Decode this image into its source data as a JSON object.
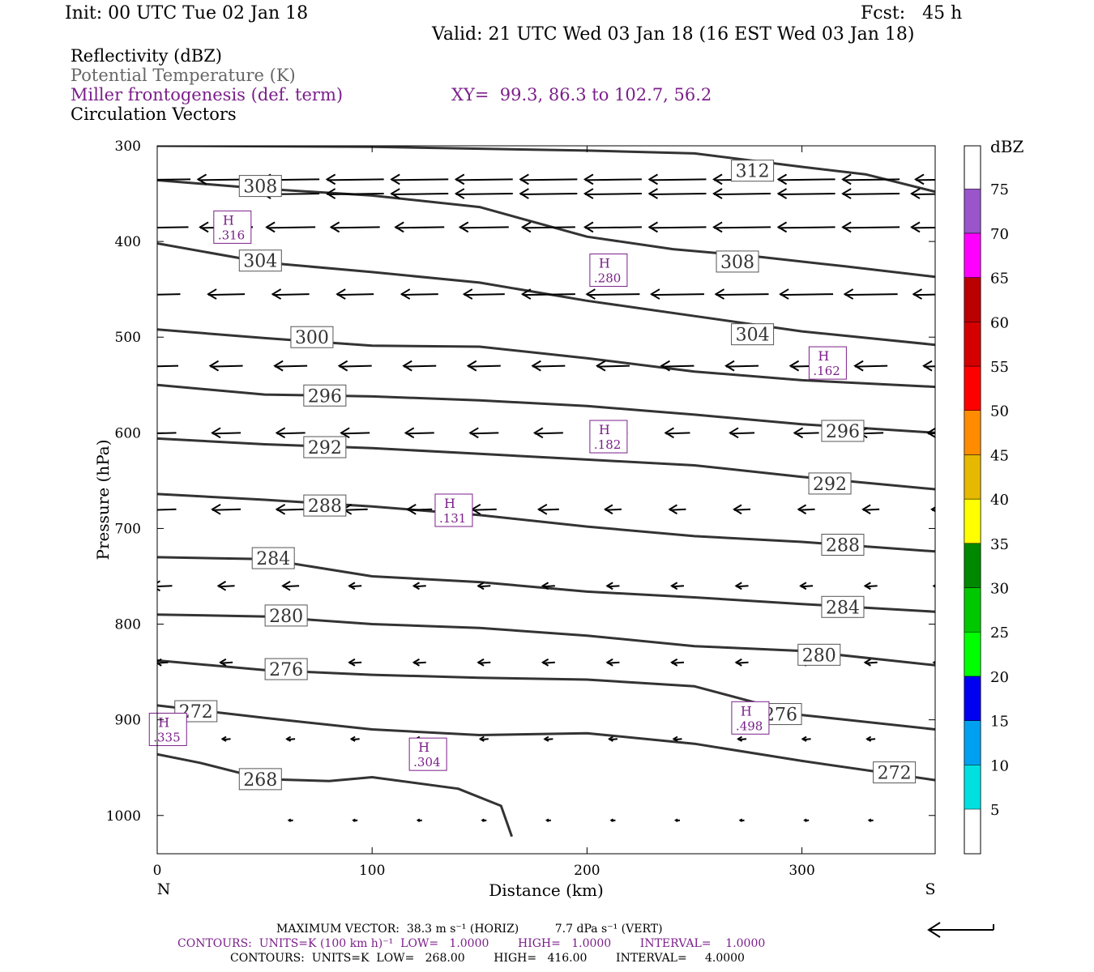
{
  "header": {
    "init": "Init: 00 UTC Tue 02 Jan 18",
    "fcst": "Fcst:   45 h",
    "valid": "Valid: 21 UTC Wed 03 Jan 18 (16 EST Wed 03 Jan 18)"
  },
  "fields": {
    "reflectivity": "Reflectivity (dBZ)",
    "theta": "Potential Temperature (K)",
    "miller": "Miller frontogenesis (def. term)",
    "xy": "XY=  99.3, 86.3 to 102.7, 56.2",
    "vectors": "Circulation Vectors"
  },
  "footer": {
    "maxvec": "MAXIMUM VECTOR:  38.3 m s⁻¹ (HORIZ)          7.7 dPa s⁻¹ (VERT)",
    "contours1": "CONTOURS:  UNITS=K (100 km h)⁻¹  LOW=   1.0000        HIGH=   1.0000        INTERVAL=    1.0000",
    "contours2": "CONTOURS:  UNITS=K  LOW=   268.00        HIGH=   416.00        INTERVAL=     4.0000"
  },
  "colors": {
    "theta": "#333333",
    "miller": "#7b1f8a",
    "vector": "#000000"
  },
  "chart_data": {
    "type": "cross-section",
    "xlabel": "Distance (km)",
    "ylabel": "Pressure (hPa)",
    "xlim": [
      0,
      362
    ],
    "ylim": [
      300,
      1040
    ],
    "y_log": false,
    "x_ticks": [
      0,
      100,
      200,
      300
    ],
    "y_ticks": [
      300,
      400,
      500,
      600,
      700,
      800,
      900,
      1000
    ],
    "end_labels": {
      "left": "N",
      "right": "S"
    },
    "theta_contours": [
      {
        "label": "312",
        "points": [
          [
            0,
            300
          ],
          [
            100,
            301
          ],
          [
            200,
            305
          ],
          [
            250,
            308
          ],
          [
            300,
            322
          ],
          [
            330,
            330
          ],
          [
            362,
            348
          ]
        ],
        "label_positions": [
          [
            277,
            326
          ]
        ]
      },
      {
        "label": "308",
        "points": [
          [
            0,
            336
          ],
          [
            50,
            345
          ],
          [
            100,
            352
          ],
          [
            150,
            364
          ],
          [
            200,
            395
          ],
          [
            240,
            408
          ],
          [
            280,
            416
          ],
          [
            320,
            426
          ],
          [
            362,
            437
          ]
        ],
        "label_positions": [
          [
            48,
            342
          ],
          [
            270,
            421
          ]
        ]
      },
      {
        "label": "304",
        "points": [
          [
            0,
            402
          ],
          [
            50,
            422
          ],
          [
            100,
            432
          ],
          [
            150,
            443
          ],
          [
            200,
            462
          ],
          [
            250,
            478
          ],
          [
            300,
            494
          ],
          [
            362,
            508
          ]
        ],
        "label_positions": [
          [
            48,
            420
          ],
          [
            277,
            497
          ]
        ]
      },
      {
        "label": "300",
        "points": [
          [
            0,
            492
          ],
          [
            50,
            501
          ],
          [
            100,
            509
          ],
          [
            150,
            510
          ],
          [
            200,
            522
          ],
          [
            250,
            536
          ],
          [
            300,
            545
          ],
          [
            362,
            552
          ]
        ],
        "label_positions": [
          [
            72,
            500
          ]
        ]
      },
      {
        "label": "296",
        "points": [
          [
            0,
            550
          ],
          [
            50,
            560
          ],
          [
            100,
            562
          ],
          [
            150,
            566
          ],
          [
            200,
            572
          ],
          [
            250,
            581
          ],
          [
            300,
            591
          ],
          [
            362,
            600
          ]
        ],
        "label_positions": [
          [
            78,
            561
          ],
          [
            319,
            598
          ]
        ]
      },
      {
        "label": "292",
        "points": [
          [
            0,
            606
          ],
          [
            50,
            612
          ],
          [
            100,
            616
          ],
          [
            150,
            622
          ],
          [
            200,
            628
          ],
          [
            250,
            634
          ],
          [
            300,
            646
          ],
          [
            362,
            659
          ]
        ],
        "label_positions": [
          [
            78,
            615
          ],
          [
            313,
            653
          ]
        ]
      },
      {
        "label": "288",
        "points": [
          [
            0,
            664
          ],
          [
            50,
            670
          ],
          [
            100,
            677
          ],
          [
            150,
            686
          ],
          [
            200,
            698
          ],
          [
            250,
            708
          ],
          [
            300,
            714
          ],
          [
            362,
            724
          ]
        ],
        "label_positions": [
          [
            78,
            676
          ],
          [
            319,
            717
          ]
        ]
      },
      {
        "label": "284",
        "points": [
          [
            0,
            730
          ],
          [
            50,
            732
          ],
          [
            100,
            750
          ],
          [
            150,
            756
          ],
          [
            200,
            766
          ],
          [
            250,
            772
          ],
          [
            300,
            779
          ],
          [
            362,
            787
          ]
        ],
        "label_positions": [
          [
            54,
            731
          ],
          [
            319,
            782
          ]
        ]
      },
      {
        "label": "280",
        "points": [
          [
            0,
            790
          ],
          [
            50,
            792
          ],
          [
            100,
            800
          ],
          [
            150,
            804
          ],
          [
            200,
            812
          ],
          [
            250,
            823
          ],
          [
            300,
            828
          ],
          [
            362,
            843
          ]
        ],
        "label_positions": [
          [
            60,
            791
          ],
          [
            308,
            832
          ]
        ]
      },
      {
        "label": "276",
        "points": [
          [
            0,
            838
          ],
          [
            50,
            848
          ],
          [
            100,
            853
          ],
          [
            150,
            856
          ],
          [
            200,
            858
          ],
          [
            250,
            865
          ],
          [
            300,
            895
          ],
          [
            362,
            910
          ]
        ],
        "label_positions": [
          [
            60,
            847
          ],
          [
            290,
            894
          ]
        ]
      },
      {
        "label": "272",
        "points": [
          [
            0,
            885
          ],
          [
            50,
            898
          ],
          [
            100,
            910
          ],
          [
            150,
            916
          ],
          [
            200,
            914
          ],
          [
            250,
            925
          ],
          [
            300,
            943
          ],
          [
            362,
            963
          ]
        ],
        "label_positions": [
          [
            18,
            891
          ],
          [
            343,
            955
          ]
        ]
      },
      {
        "label": "268",
        "points": [
          [
            0,
            936
          ],
          [
            20,
            945
          ],
          [
            50,
            962
          ],
          [
            80,
            964
          ],
          [
            100,
            960
          ],
          [
            140,
            972
          ],
          [
            160,
            990
          ],
          [
            165,
            1022
          ]
        ],
        "label_positions": [
          [
            48,
            962
          ]
        ]
      }
    ],
    "miller_maxima": [
      {
        "label": "H",
        "value": ".316",
        "x": 35,
        "p": 385
      },
      {
        "label": "H",
        "value": ".280",
        "x": 210,
        "p": 430
      },
      {
        "label": "H",
        "value": ".162",
        "x": 312,
        "p": 527
      },
      {
        "label": "H",
        "value": ".182",
        "x": 210,
        "p": 604
      },
      {
        "label": "H",
        "value": ".131",
        "x": 138,
        "p": 681
      },
      {
        "label": "H",
        "value": ".498",
        "x": 276,
        "p": 898
      },
      {
        "label": "H",
        "value": ".335",
        "x": 5,
        "p": 910
      },
      {
        "label": "H",
        "value": ".304",
        "x": 126,
        "p": 936
      }
    ],
    "circulation_vectors": {
      "columns": [
        0,
        30,
        60,
        90,
        120,
        150,
        180,
        210,
        240,
        270,
        300,
        330,
        362
      ],
      "levels": [
        {
          "p": 335,
          "u": [
            -14,
            -14,
            -14,
            -14,
            -14,
            -14,
            -14,
            -14,
            -14,
            -14,
            -14,
            -14,
            -12
          ]
        },
        {
          "p": 350,
          "u": [
            0,
            0,
            -14,
            -14,
            -14,
            -14,
            -14,
            -14,
            -14,
            -14,
            -14,
            -14,
            -14
          ]
        },
        {
          "p": 385,
          "u": [
            -13,
            -13,
            -12,
            -12,
            -12,
            -12,
            -13,
            -14,
            -14,
            -14,
            -14,
            -14,
            -14
          ]
        },
        {
          "p": 455,
          "u": [
            -9,
            -9,
            -9,
            -9,
            -9,
            -10,
            -13,
            -13,
            -13,
            -13,
            -13,
            -13,
            -13
          ]
        },
        {
          "p": 530,
          "u": [
            -8,
            -8,
            -8,
            -8,
            -8,
            -8,
            -8,
            -8,
            -8,
            -8,
            -8,
            -8,
            -8
          ]
        },
        {
          "p": 600,
          "u": [
            -7,
            -7,
            -7,
            -7,
            -7,
            -7,
            -7,
            -7,
            -6,
            -6,
            -6,
            -6,
            -6
          ]
        },
        {
          "p": 680,
          "u": [
            -7,
            -7,
            -7,
            -6,
            -6,
            -6,
            -5,
            -4,
            -4,
            -4,
            -4,
            -4,
            -4
          ]
        },
        {
          "p": 760,
          "u": [
            -5,
            -4,
            -4,
            -3,
            -3,
            -3,
            -3,
            -3,
            -3,
            -3,
            -3,
            -3,
            -3
          ]
        },
        {
          "p": 840,
          "u": [
            -3,
            -3,
            -3,
            -3,
            -3,
            -3,
            -3,
            -3,
            -3,
            -3,
            -3,
            -3,
            -3
          ]
        },
        {
          "p": 920,
          "u": [
            -2,
            -2,
            -2,
            -2,
            -2,
            -2,
            -2,
            -2,
            -2,
            -2,
            -2,
            -2,
            -2
          ]
        },
        {
          "p": 1005,
          "u": [
            0,
            0,
            -1,
            -1,
            -1,
            -1,
            -1,
            -1,
            -1,
            -1,
            -1,
            -1,
            -1
          ]
        }
      ]
    },
    "colorbar": {
      "title": "dBZ",
      "levels": [
        5,
        10,
        15,
        20,
        25,
        30,
        35,
        40,
        45,
        50,
        55,
        60,
        65,
        70,
        75
      ],
      "colors": [
        "#00e0e0",
        "#00a0f0",
        "#0000f0",
        "#00ff00",
        "#00c800",
        "#008800",
        "#ffff00",
        "#e6b800",
        "#ff8c00",
        "#ff0000",
        "#d40000",
        "#bb0000",
        "#ff00ff",
        "#9955c9",
        "#ffffff"
      ]
    }
  }
}
